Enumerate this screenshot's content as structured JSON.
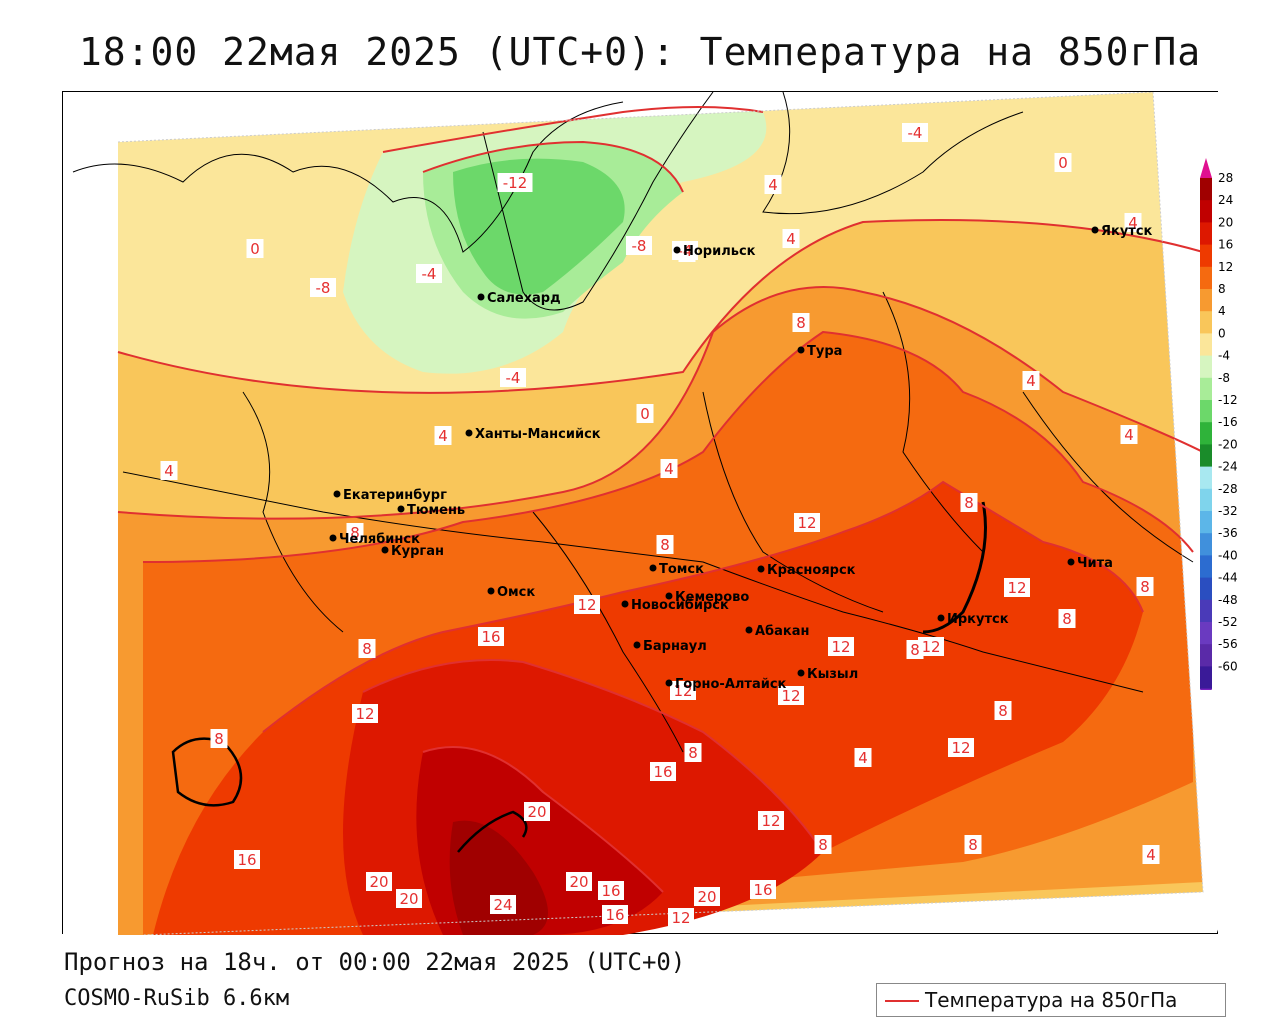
{
  "title": "18:00 22мая 2025 (UTC+0): Температура на 850гПа",
  "footer": {
    "forecast": "Прогноз на 18ч. от 00:00 22мая 2025 (UTC+0)",
    "model": "COSMO-RuSib 6.6км"
  },
  "legend": {
    "label": "Температура на 850гПа",
    "line_color": "#e03030"
  },
  "colorbar": {
    "ticks": [
      "28",
      "24",
      "20",
      "16",
      "12",
      "8",
      "4",
      "0",
      "-4",
      "-8",
      "-12",
      "-16",
      "-20",
      "-24",
      "-28",
      "-32",
      "-36",
      "-40",
      "-44",
      "-48",
      "-52",
      "-56",
      "-60"
    ],
    "colors": [
      "#a00000",
      "#c00000",
      "#dd1800",
      "#ee3a00",
      "#f56a10",
      "#f79a30",
      "#f9c65a",
      "#fbe69a",
      "#d6f5c0",
      "#a8ec98",
      "#6cd86a",
      "#2fb33a",
      "#1a8c2a",
      "#a8e8f0",
      "#7fd4ec",
      "#5cb6e8",
      "#4090dc",
      "#2c6cd0",
      "#2a4ec0",
      "#4a3ab8",
      "#6a3ac0",
      "#5a2aa8",
      "#3a1a98"
    ]
  },
  "cities": [
    {
      "name": "Якутск",
      "label": "Якутск"
    },
    {
      "name": "Норильск",
      "label": "Норильск"
    },
    {
      "name": "Салехард",
      "label": "Салехард"
    },
    {
      "name": "Тура",
      "label": "Тура"
    },
    {
      "name": "Ханты-Мансийск",
      "label": "Ханты-Мансийск"
    },
    {
      "name": "Екатеринбург",
      "label": "Екатеринбург"
    },
    {
      "name": "Тюмень",
      "label": "Тюмень"
    },
    {
      "name": "Челябинск",
      "label": "Челябинск"
    },
    {
      "name": "Курган",
      "label": "Курган"
    },
    {
      "name": "Омск",
      "label": "Омск"
    },
    {
      "name": "Новосибирск",
      "label": "Новосибирск"
    },
    {
      "name": "Томск",
      "label": "Томск"
    },
    {
      "name": "Кемерово",
      "label": "Кемерово"
    },
    {
      "name": "Красноярск",
      "label": "Красноярск"
    },
    {
      "name": "Барнаул",
      "label": "Барнаул"
    },
    {
      "name": "Абакан",
      "label": "Абакан"
    },
    {
      "name": "Кызыл",
      "label": "Кызыл"
    },
    {
      "name": "Горно-Алтайск",
      "label": "Горно-Алтайск"
    },
    {
      "name": "Иркутск",
      "label": "Иркутск"
    },
    {
      "name": "Чита",
      "label": "Чита"
    }
  ],
  "contour_labels": [
    "-4",
    "0",
    "4",
    "-12",
    "-8",
    "-4",
    "-8",
    "-4",
    "0",
    "4",
    "0",
    "-4",
    "4",
    "8",
    "4",
    "0",
    "4",
    "4",
    "4",
    "8",
    "8",
    "12",
    "4",
    "8",
    "12",
    "8",
    "12",
    "8",
    "8",
    "12",
    "16",
    "12",
    "12",
    "8",
    "8",
    "12",
    "8",
    "12",
    "4",
    "12",
    "8",
    "16",
    "12",
    "8",
    "8",
    "4",
    "16",
    "20",
    "20",
    "20",
    "20",
    "16",
    "20",
    "16",
    "16",
    "24",
    "12"
  ]
}
